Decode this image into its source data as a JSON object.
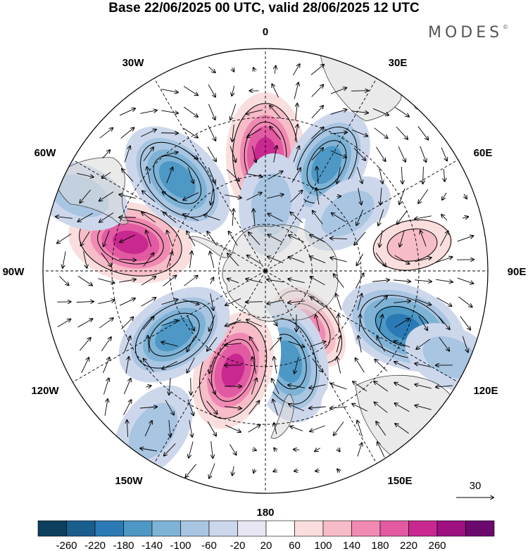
{
  "title": "Base 22/06/2025 00 UTC, valid 28/06/2025 12 UTC",
  "brand": "MODES",
  "brand_mark": "©",
  "map": {
    "projection": "south polar stereographic",
    "longitude_labels": [
      "0",
      "30E",
      "60E",
      "90E",
      "120E",
      "150E",
      "180",
      "150W",
      "120W",
      "90W",
      "60W",
      "30W"
    ],
    "reference_vector": {
      "value": "30",
      "icon": "arrow-right-icon"
    },
    "anomalies": [
      {
        "lon": 0,
        "r": 0.52,
        "v": 250
      },
      {
        "lon": 30,
        "r": 0.55,
        "v": -150
      },
      {
        "lon": 55,
        "r": 0.45,
        "v": -80
      },
      {
        "lon": 80,
        "r": 0.67,
        "v": 130
      },
      {
        "lon": 112,
        "r": 0.67,
        "v": -190
      },
      {
        "lon": 142,
        "r": 0.32,
        "v": 150
      },
      {
        "lon": 166,
        "r": 0.42,
        "v": -170
      },
      {
        "lon": -162,
        "r": 0.47,
        "v": 230
      },
      {
        "lon": -125,
        "r": 0.5,
        "v": -170
      },
      {
        "lon": -78,
        "r": 0.62,
        "v": 250
      },
      {
        "lon": -44,
        "r": 0.57,
        "v": -180
      },
      {
        "lon": -68,
        "r": 0.9,
        "v": -90
      },
      {
        "lon": 5,
        "r": 0.3,
        "v": -100
      },
      {
        "lon": 115,
        "r": 0.92,
        "v": -80
      },
      {
        "lon": -145,
        "r": 0.88,
        "v": -100
      },
      {
        "lon": 150,
        "r": 0.8,
        "v": 60
      }
    ]
  },
  "colorbar": {
    "colors": [
      "#0d3f5e",
      "#1a5e8e",
      "#2b7ab5",
      "#4e98c6",
      "#7fb3d6",
      "#a8c5e2",
      "#cdd7ec",
      "#e8e6f3",
      "#ffffff",
      "#f9dedd",
      "#f6bcc8",
      "#f08ab2",
      "#e25aa2",
      "#c8288f",
      "#9e0f80",
      "#6c096e"
    ],
    "ticks": [
      "-260",
      "-220",
      "-180",
      "-140",
      "-100",
      "-60",
      "-20",
      "20",
      "60",
      "100",
      "140",
      "180",
      "220",
      "260"
    ]
  }
}
